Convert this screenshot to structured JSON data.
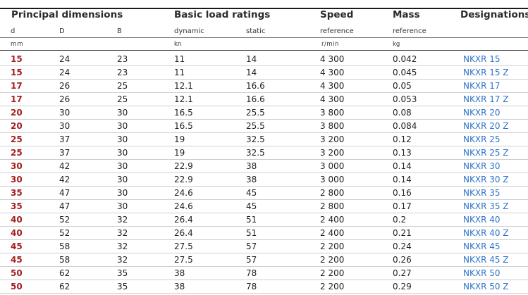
{
  "headers": {
    "principal_dimensions": "Principal dimensions",
    "basic_load_ratings": "Basic load ratings",
    "speed": "Speed",
    "mass": "Mass",
    "designations": "Designations"
  },
  "subheaders": {
    "d": "d",
    "D": "D",
    "B": "B",
    "dynamic": "dynamic",
    "static": "static",
    "speed_reference": "reference",
    "mass_reference": "reference"
  },
  "units": {
    "mm": "mm",
    "kn": "kn",
    "rmin": "r/min",
    "kg": "kg"
  },
  "rows": [
    {
      "d": "15",
      "D": "24",
      "B": "23",
      "dynamic": "11",
      "static": "14",
      "speed": "4 300",
      "mass": "0.042",
      "designation": "NKXR 15"
    },
    {
      "d": "15",
      "D": "24",
      "B": "23",
      "dynamic": "11",
      "static": "14",
      "speed": "4 300",
      "mass": "0.045",
      "designation": "NKXR 15 Z"
    },
    {
      "d": "17",
      "D": "26",
      "B": "25",
      "dynamic": "12.1",
      "static": "16.6",
      "speed": "4 300",
      "mass": "0.05",
      "designation": "NKXR 17"
    },
    {
      "d": "17",
      "D": "26",
      "B": "25",
      "dynamic": "12.1",
      "static": "16.6",
      "speed": "4 300",
      "mass": "0.053",
      "designation": "NKXR 17 Z"
    },
    {
      "d": "20",
      "D": "30",
      "B": "30",
      "dynamic": "16.5",
      "static": "25.5",
      "speed": "3 800",
      "mass": "0.08",
      "designation": "NKXR 20"
    },
    {
      "d": "20",
      "D": "30",
      "B": "30",
      "dynamic": "16.5",
      "static": "25.5",
      "speed": "3 800",
      "mass": "0.084",
      "designation": "NKXR 20 Z"
    },
    {
      "d": "25",
      "D": "37",
      "B": "30",
      "dynamic": "19",
      "static": "32.5",
      "speed": "3 200",
      "mass": "0.12",
      "designation": "NKXR 25"
    },
    {
      "d": "25",
      "D": "37",
      "B": "30",
      "dynamic": "19",
      "static": "32.5",
      "speed": "3 200",
      "mass": "0.13",
      "designation": "NKXR 25 Z"
    },
    {
      "d": "30",
      "D": "42",
      "B": "30",
      "dynamic": "22.9",
      "static": "38",
      "speed": "3 000",
      "mass": "0.14",
      "designation": "NKXR 30"
    },
    {
      "d": "30",
      "D": "42",
      "B": "30",
      "dynamic": "22.9",
      "static": "38",
      "speed": "3 000",
      "mass": "0.14",
      "designation": "NKXR 30 Z"
    },
    {
      "d": "35",
      "D": "47",
      "B": "30",
      "dynamic": "24.6",
      "static": "45",
      "speed": "2 800",
      "mass": "0.16",
      "designation": "NKXR 35"
    },
    {
      "d": "35",
      "D": "47",
      "B": "30",
      "dynamic": "24.6",
      "static": "45",
      "speed": "2 800",
      "mass": "0.17",
      "designation": "NKXR 35 Z"
    },
    {
      "d": "40",
      "D": "52",
      "B": "32",
      "dynamic": "26.4",
      "static": "51",
      "speed": "2 400",
      "mass": "0.2",
      "designation": "NKXR 40"
    },
    {
      "d": "40",
      "D": "52",
      "B": "32",
      "dynamic": "26.4",
      "static": "51",
      "speed": "2 400",
      "mass": "0.21",
      "designation": "NKXR 40 Z"
    },
    {
      "d": "45",
      "D": "58",
      "B": "32",
      "dynamic": "27.5",
      "static": "57",
      "speed": "2 200",
      "mass": "0.24",
      "designation": "NKXR 45"
    },
    {
      "d": "45",
      "D": "58",
      "B": "32",
      "dynamic": "27.5",
      "static": "57",
      "speed": "2 200",
      "mass": "0.26",
      "designation": "NKXR 45 Z"
    },
    {
      "d": "50",
      "D": "62",
      "B": "35",
      "dynamic": "38",
      "static": "78",
      "speed": "2 200",
      "mass": "0.27",
      "designation": "NKXR 50"
    },
    {
      "d": "50",
      "D": "62",
      "B": "35",
      "dynamic": "38",
      "static": "78",
      "speed": "2 200",
      "mass": "0.29",
      "designation": "NKXR 50 Z"
    }
  ],
  "colors": {
    "bore_red": "#a51f1f",
    "designation_blue": "#2f73c9"
  }
}
